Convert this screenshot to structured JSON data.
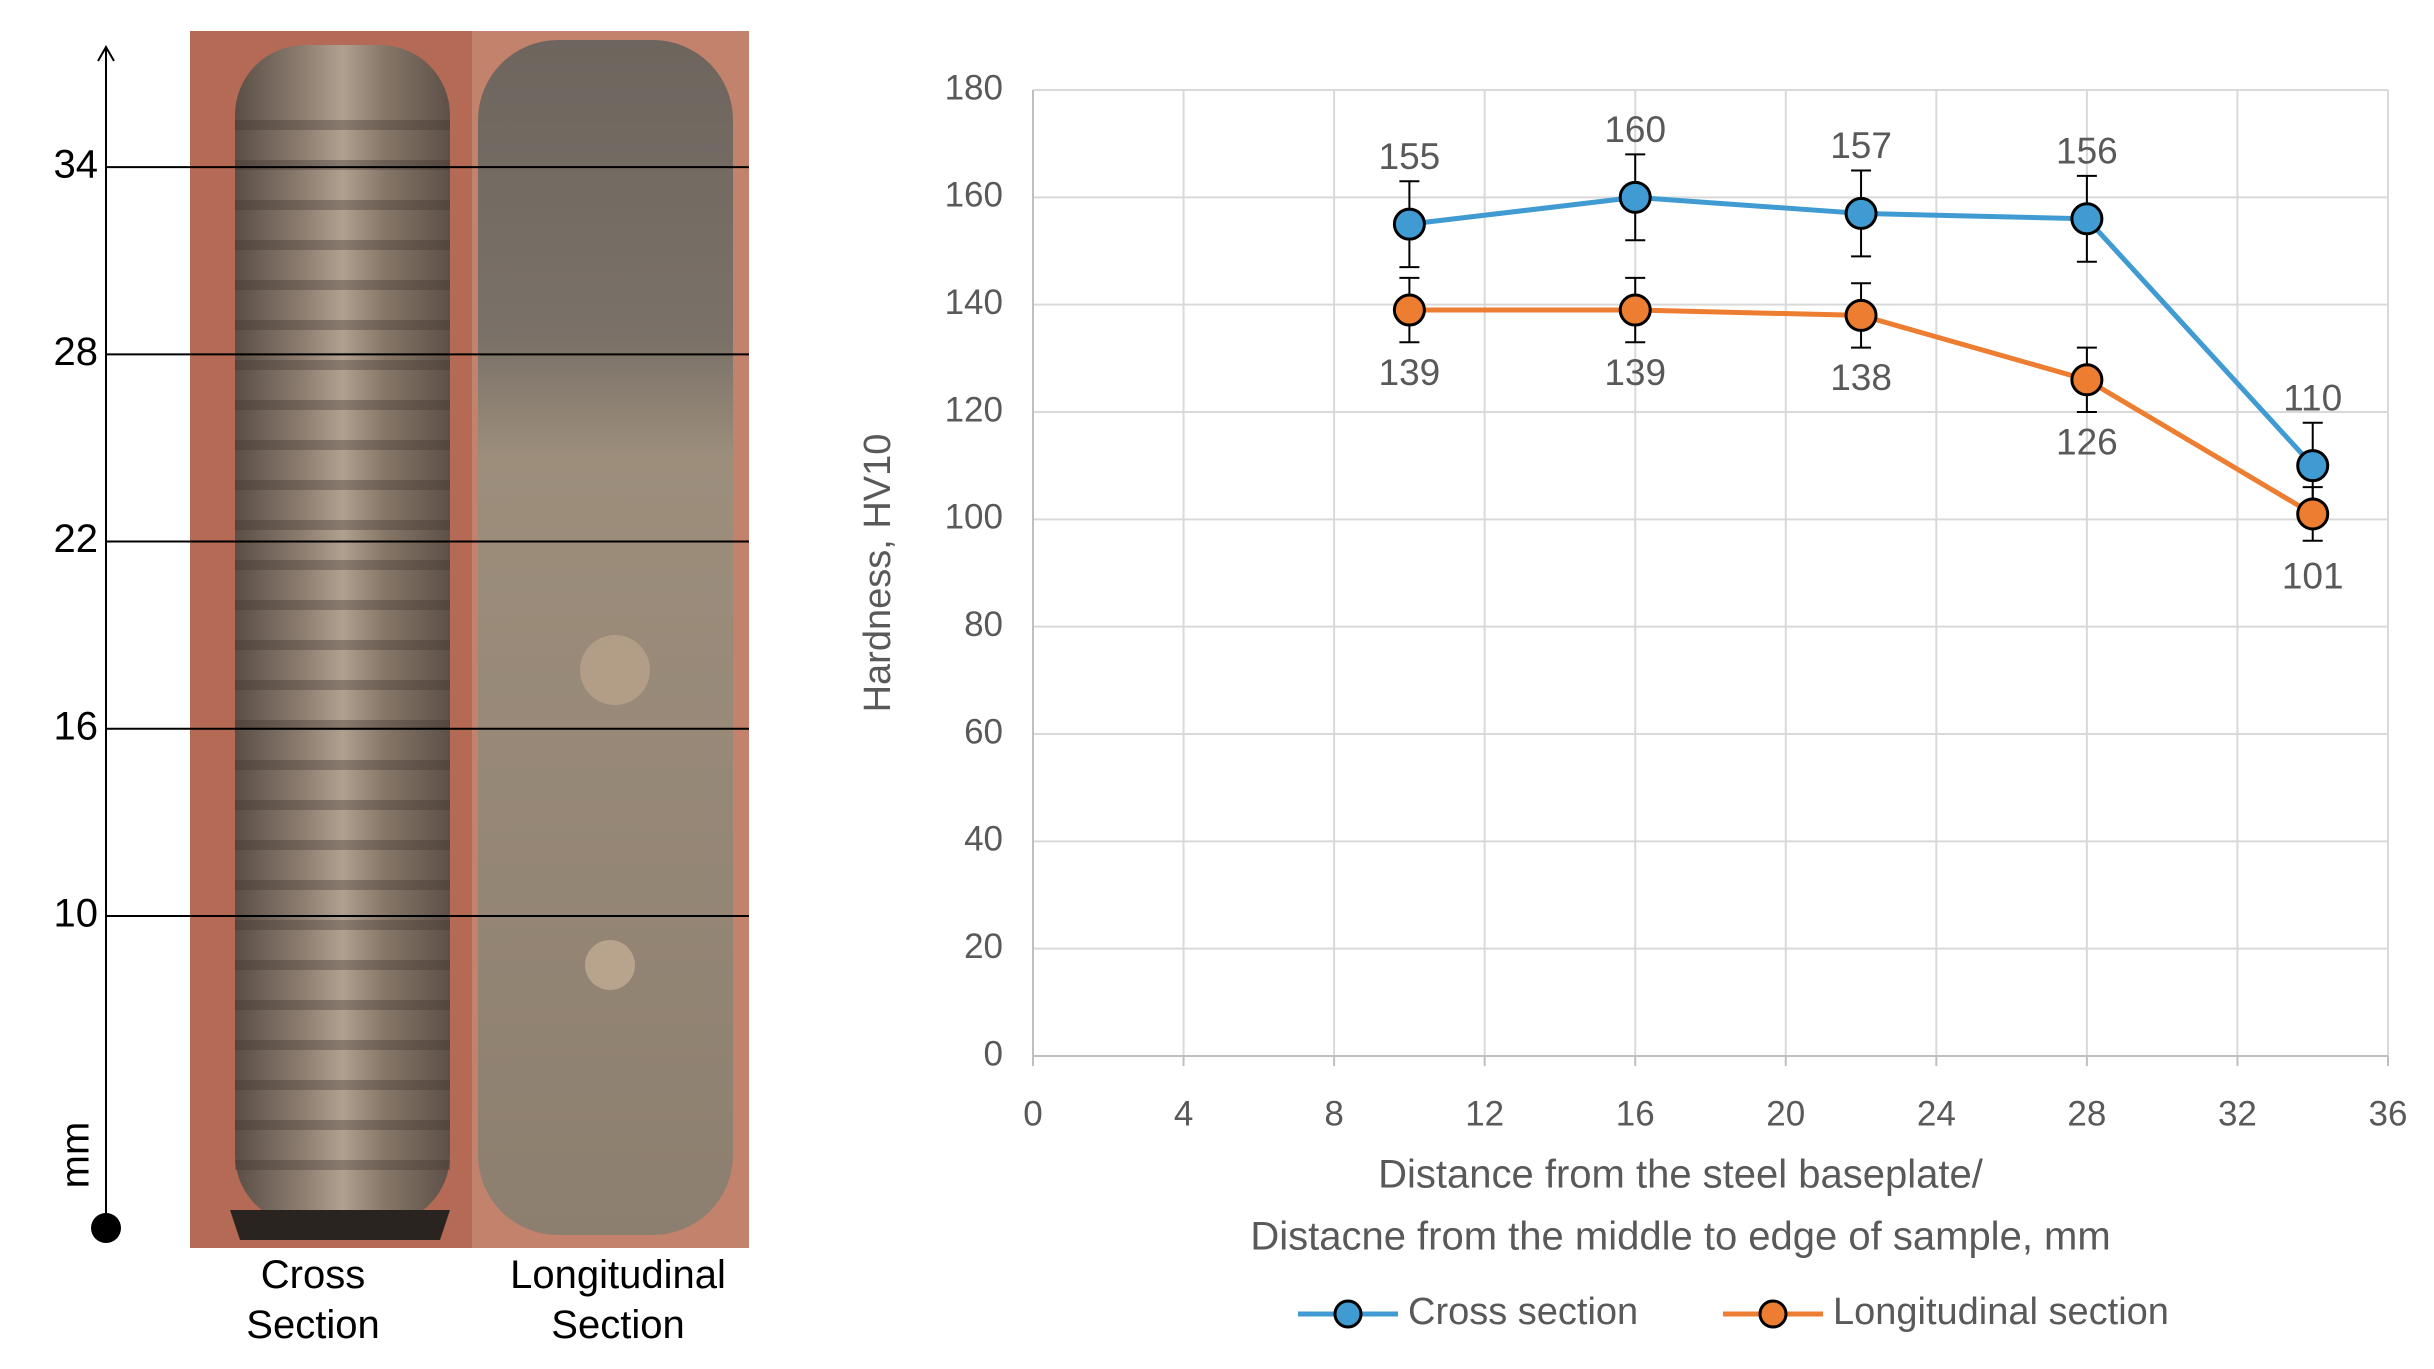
{
  "chart_data": [
    {
      "type": "scale",
      "ylabel": "mm",
      "ylim": [
        0,
        37.85
      ],
      "yticks": [
        10,
        16,
        22,
        28,
        34
      ],
      "panels": [
        "Cross Section",
        "Longitudinal Section"
      ]
    },
    {
      "type": "line",
      "ylabel": "Hardness, HV10",
      "xlabel": [
        "Distance from the steel baseplate/",
        "Distacne from the middle to edge of sample, mm"
      ],
      "x": [
        10,
        16,
        22,
        28,
        34
      ],
      "series": [
        {
          "name": "Cross section",
          "color": "#3f9bd2",
          "values": [
            155,
            160,
            157,
            156,
            110
          ],
          "errors": [
            8,
            8,
            8,
            8,
            8
          ]
        },
        {
          "name": "Longitudinal section",
          "color": "#ed7d31",
          "values": [
            139,
            139,
            138,
            126,
            101
          ],
          "errors": [
            6,
            6,
            6,
            6,
            5
          ]
        }
      ],
      "xlim": [
        0,
        36
      ],
      "xticks": [
        0,
        4,
        8,
        12,
        16,
        20,
        24,
        28,
        32,
        36
      ],
      "ylim": [
        0,
        180
      ],
      "yticks": [
        0,
        20,
        40,
        60,
        80,
        100,
        120,
        140,
        160,
        180
      ],
      "grid": true,
      "legend": "bottom"
    }
  ]
}
